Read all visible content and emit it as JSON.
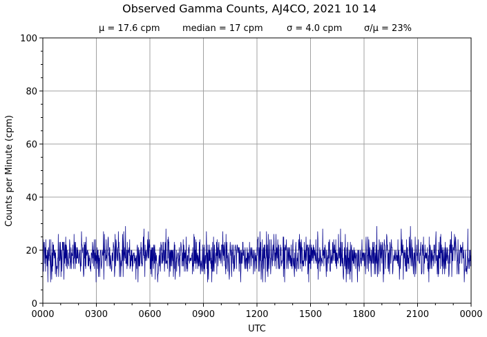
{
  "chart_data": {
    "type": "line",
    "title": "Observed Gamma Counts, AJ4CO, 2021 10 14",
    "stats": {
      "mean": "μ = 17.6 cpm",
      "median": "median = 17 cpm",
      "sigma": "σ = 4.0 cpm",
      "ratio": "σ/μ = 23%"
    },
    "xlabel": "UTC",
    "ylabel": "Counts per Minute (cpm)",
    "xlim_minutes": [
      0,
      1440
    ],
    "ylim": [
      0,
      100
    ],
    "x_tick_labels": [
      "0000",
      "0300",
      "0600",
      "0900",
      "1200",
      "1500",
      "1800",
      "2100",
      "0000"
    ],
    "y_tick_labels": [
      "0",
      "20",
      "40",
      "60",
      "80",
      "100"
    ],
    "y_ticks": [
      0,
      20,
      40,
      60,
      80,
      100
    ],
    "grid": true,
    "series": [
      {
        "color": "#00008b",
        "sampling": "one value per minute, 1440 points, 0000–2400 UTC",
        "mean": 17.6,
        "median": 17,
        "sigma": 4.0,
        "min_observed": 8,
        "max_observed": 31
      }
    ]
  }
}
